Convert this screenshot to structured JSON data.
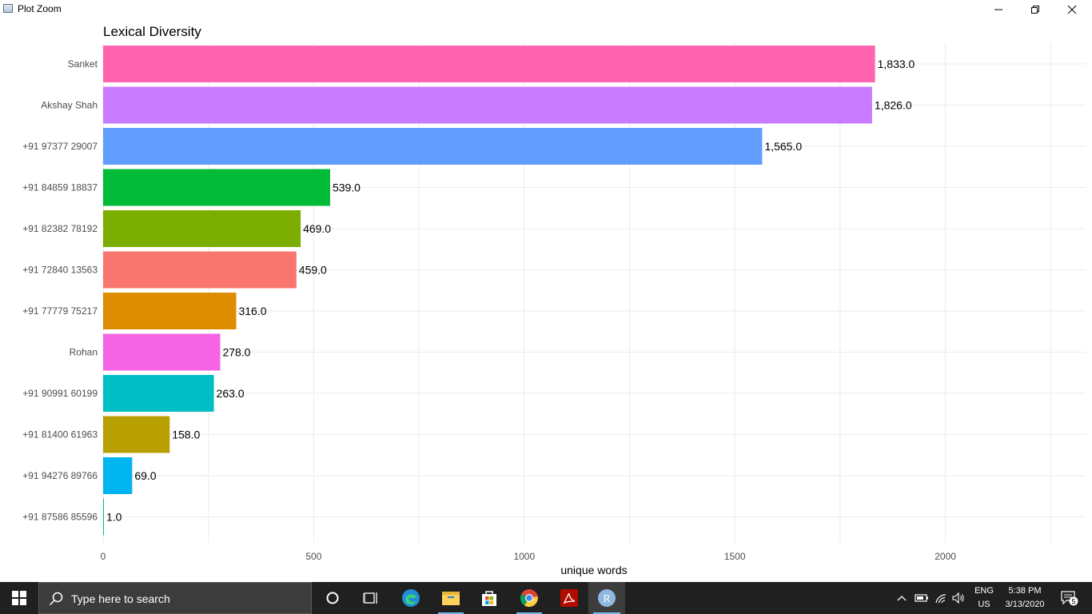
{
  "window": {
    "title": "Plot Zoom"
  },
  "chart_data": {
    "type": "bar",
    "orientation": "horizontal",
    "title": "Lexical Diversity",
    "xlabel": "unique words",
    "ylabel": "",
    "xlim": [
      0,
      2300
    ],
    "xticks": [
      0,
      500,
      1000,
      1500,
      2000
    ],
    "xtick_labels": [
      "0",
      "500",
      "1000",
      "1500",
      "2000"
    ],
    "grid": true,
    "legend": "none",
    "categories": [
      "Sanket",
      "Akshay Shah",
      "+91 97377 29007",
      "+91 84859 18837",
      "+91 82382 78192",
      "+91 72840 13563",
      "+91 77779 75217",
      "Rohan",
      "+91 90991 60199",
      "+91 81400 61963",
      "+91 94276 89766",
      "+91 87586 85596"
    ],
    "values": [
      1833,
      1826,
      1565,
      539,
      469,
      459,
      316,
      278,
      263,
      158,
      69,
      1
    ],
    "value_labels": [
      "1,833.0",
      "1,826.0",
      "1,565.0",
      "539.0",
      "469.0",
      "459.0",
      "316.0",
      "278.0",
      "263.0",
      "158.0",
      "69.0",
      "1.0"
    ],
    "colors": [
      "#FF64B0",
      "#C77CFF",
      "#619CFF",
      "#00BA38",
      "#7CAE00",
      "#F8766D",
      "#DE8C00",
      "#F564E3",
      "#00BFC4",
      "#B79F00",
      "#00B4F0",
      "#00C08B"
    ]
  },
  "taskbar": {
    "search_placeholder": "Type here to search",
    "language": "ENG",
    "region": "US",
    "time": "5:38 PM",
    "date": "3/13/2020",
    "notification_count": "5",
    "r_label": "R"
  }
}
